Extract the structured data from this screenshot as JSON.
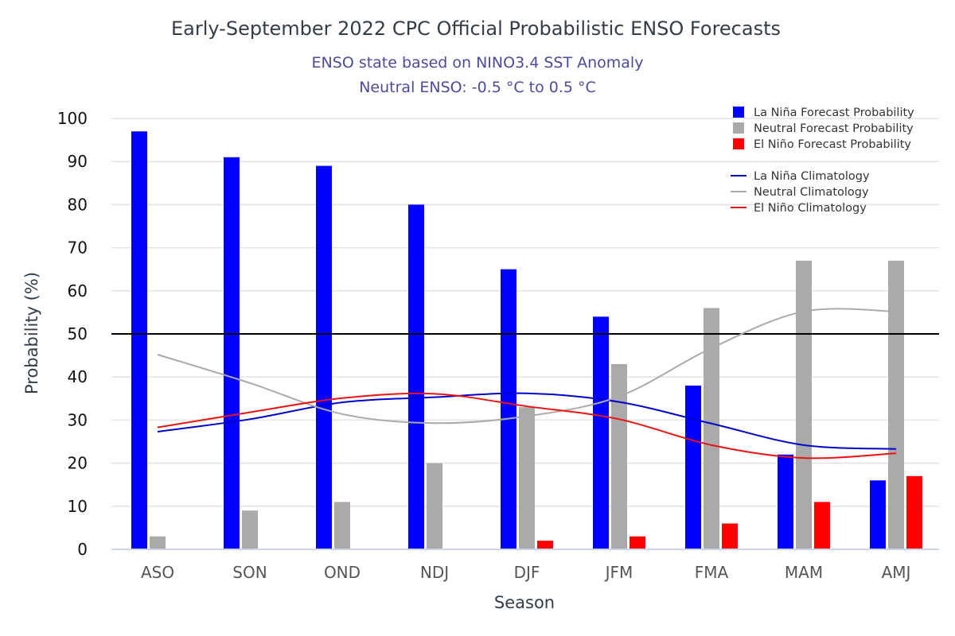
{
  "chart_data": {
    "type": "bar",
    "title": "Early-September 2022 CPC Official Probabilistic ENSO Forecasts",
    "subtitle_lines": [
      "ENSO state based on NINO3.4 SST Anomaly",
      "Neutral ENSO: -0.5 °C to 0.5 °C"
    ],
    "xlabel": "Season",
    "ylabel": "Probability (%)",
    "ylim": [
      0,
      100
    ],
    "yticks": [
      "0",
      "10",
      "20",
      "30",
      "40",
      "50",
      "60",
      "70",
      "80",
      "90",
      "100"
    ],
    "reference_line": 50,
    "categories": [
      "ASO",
      "SON",
      "OND",
      "NDJ",
      "DJF",
      "JFM",
      "FMA",
      "MAM",
      "AMJ"
    ],
    "series": [
      {
        "name": "La Niña Forecast Probability",
        "color": "#0000ff",
        "values": [
          97,
          91,
          89,
          80,
          65,
          54,
          38,
          22,
          16
        ]
      },
      {
        "name": "Neutral Forecast Probability",
        "color": "#aaaaaa",
        "values": [
          3,
          9,
          11,
          20,
          33,
          43,
          56,
          67,
          67
        ]
      },
      {
        "name": "El Niño Forecast Probability",
        "color": "#ff0000",
        "values": [
          0,
          0,
          0,
          0,
          2,
          3,
          6,
          11,
          17
        ]
      }
    ],
    "lines": [
      {
        "name": "La Niña Climatology",
        "color": "#0000cc",
        "values": [
          27.3,
          30.2,
          34.1,
          35.3,
          36.2,
          34.2,
          29.2,
          24.2,
          23.3
        ]
      },
      {
        "name": "Neutral Climatology",
        "color": "#aaaaaa",
        "values": [
          45.2,
          38.6,
          31.4,
          29.3,
          30.9,
          35.5,
          46.7,
          55.2,
          55.2
        ]
      },
      {
        "name": "El Niño Climatology",
        "color": "#ee1111",
        "values": [
          28.3,
          31.8,
          35.1,
          36.1,
          33.2,
          30.2,
          24.2,
          21.2,
          22.3
        ]
      }
    ]
  }
}
